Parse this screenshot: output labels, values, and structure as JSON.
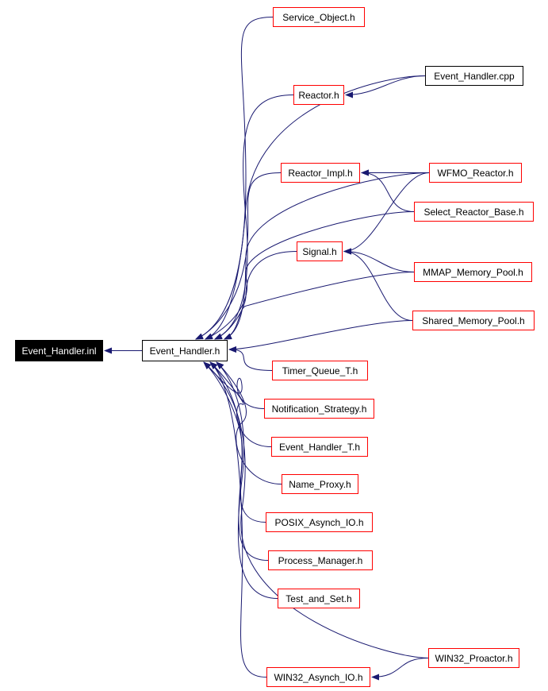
{
  "colors": {
    "edge": "#191970",
    "node_border": "#ff0000",
    "root_fill": "#000000"
  },
  "nodes": [
    {
      "id": "inl",
      "label": "Event_Handler.inl"
    },
    {
      "id": "eh",
      "label": "Event_Handler.h"
    },
    {
      "id": "svc",
      "label": "Service_Object.h"
    },
    {
      "id": "cpp",
      "label": "Event_Handler.cpp"
    },
    {
      "id": "reactor",
      "label": "Reactor.h"
    },
    {
      "id": "rimpl",
      "label": "Reactor_Impl.h"
    },
    {
      "id": "wfmo",
      "label": "WFMO_Reactor.h"
    },
    {
      "id": "srb",
      "label": "Select_Reactor_Base.h"
    },
    {
      "id": "signal",
      "label": "Signal.h"
    },
    {
      "id": "mmap",
      "label": "MMAP_Memory_Pool.h"
    },
    {
      "id": "shm",
      "label": "Shared_Memory_Pool.h"
    },
    {
      "id": "tq",
      "label": "Timer_Queue_T.h"
    },
    {
      "id": "ns",
      "label": "Notification_Strategy.h"
    },
    {
      "id": "eht",
      "label": "Event_Handler_T.h"
    },
    {
      "id": "np",
      "label": "Name_Proxy.h"
    },
    {
      "id": "posix",
      "label": "POSIX_Asynch_IO.h"
    },
    {
      "id": "pm",
      "label": "Process_Manager.h"
    },
    {
      "id": "tas",
      "label": "Test_and_Set.h"
    },
    {
      "id": "w32p",
      "label": "WIN32_Proactor.h"
    },
    {
      "id": "w32a",
      "label": "WIN32_Asynch_IO.h"
    }
  ],
  "edges": [
    {
      "from": "eh",
      "to": "inl"
    },
    {
      "from": "svc",
      "to": "eh"
    },
    {
      "from": "cpp",
      "to": "eh"
    },
    {
      "from": "cpp",
      "to": "reactor"
    },
    {
      "from": "reactor",
      "to": "eh"
    },
    {
      "from": "wfmo",
      "to": "eh"
    },
    {
      "from": "wfmo",
      "to": "rimpl"
    },
    {
      "from": "wfmo",
      "to": "signal"
    },
    {
      "from": "rimpl",
      "to": "eh"
    },
    {
      "from": "srb",
      "to": "rimpl"
    },
    {
      "from": "srb",
      "to": "eh"
    },
    {
      "from": "signal",
      "to": "eh"
    },
    {
      "from": "mmap",
      "to": "signal"
    },
    {
      "from": "mmap",
      "to": "eh"
    },
    {
      "from": "shm",
      "to": "signal"
    },
    {
      "from": "shm",
      "to": "eh"
    },
    {
      "from": "tq",
      "to": "eh"
    },
    {
      "from": "ns",
      "to": "eh"
    },
    {
      "from": "eht",
      "to": "eh"
    },
    {
      "from": "np",
      "to": "eh"
    },
    {
      "from": "posix",
      "to": "eh"
    },
    {
      "from": "pm",
      "to": "eh"
    },
    {
      "from": "tas",
      "to": "eh"
    },
    {
      "from": "w32p",
      "to": "eh"
    },
    {
      "from": "w32p",
      "to": "w32a"
    },
    {
      "from": "w32a",
      "to": "eh"
    }
  ]
}
